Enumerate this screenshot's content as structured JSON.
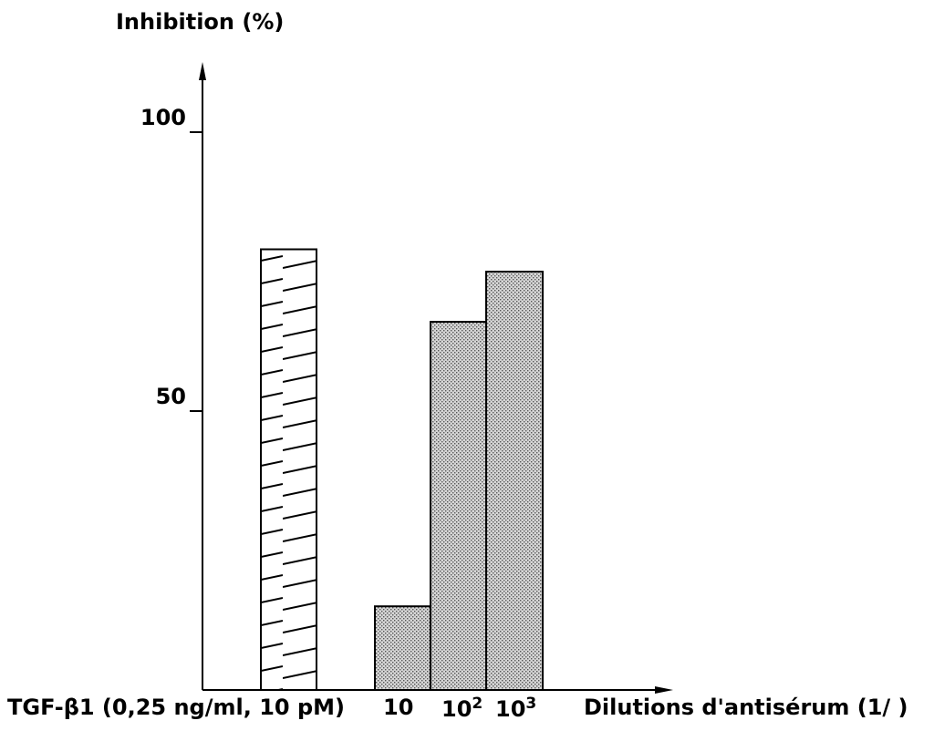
{
  "chart_data": {
    "type": "bar",
    "ylabel": "Inhibition (%)",
    "xlabel": "Dilutions d'antisérum (1/ )",
    "ylim": [
      0,
      120
    ],
    "yticks": [
      {
        "value": 50,
        "label": "50"
      },
      {
        "value": 100,
        "label": "100"
      }
    ],
    "grid": false,
    "legend": "none",
    "bars": [
      {
        "label": "TGF-β1 (0,25 ng/ml, 10 pM)",
        "label_base": "TGF-β1 (0,25 ng/ml, 10 pM)",
        "label_exp": "",
        "value": 79,
        "pattern": "hatch"
      },
      {
        "label": "10",
        "label_base": "10",
        "label_exp": "",
        "value": 15,
        "pattern": "dots"
      },
      {
        "label": "10²",
        "label_base": "10",
        "label_exp": "2",
        "value": 66,
        "pattern": "dots"
      },
      {
        "label": "10³",
        "label_base": "10",
        "label_exp": "3",
        "value": 75,
        "pattern": "dots"
      }
    ]
  }
}
